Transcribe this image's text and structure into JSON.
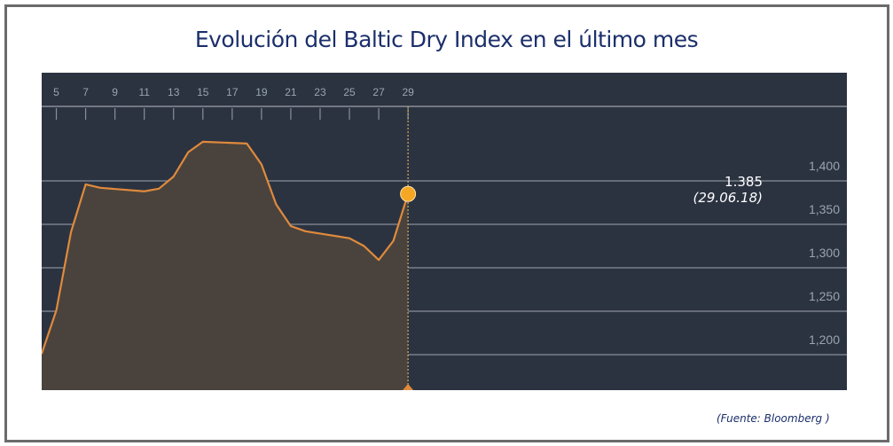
{
  "title": "Evolución del Baltic Dry Index en el último mes",
  "source": "(Fuente: Bloomberg )",
  "callout": {
    "value": "1.385",
    "date": "(29.06.18)"
  },
  "colors": {
    "panel_bg": "#2b3341",
    "area_fill": "#4a433d",
    "line": "#e08a3c",
    "marker": "#f5a623",
    "grid": "#8a8f98",
    "title": "#1b2f6b"
  },
  "chart_data": {
    "type": "area",
    "title": "Evolución del Baltic Dry Index en el último mes",
    "xlabel": "",
    "ylabel": "",
    "x_ticks": [
      "5",
      "7",
      "9",
      "11",
      "13",
      "15",
      "17",
      "19",
      "21",
      "23",
      "25",
      "27",
      "29"
    ],
    "y_ticks": [
      "1,200",
      "1,250",
      "1,300",
      "1,350",
      "1,400"
    ],
    "ylim": [
      1160,
      1520
    ],
    "grid": true,
    "legend": null,
    "x": [
      4,
      5,
      6,
      7,
      8,
      11,
      12,
      13,
      14,
      15,
      18,
      19,
      20,
      21,
      22,
      25,
      26,
      27,
      28,
      29
    ],
    "values": [
      1201,
      1251,
      1341,
      1396,
      1392,
      1388,
      1391,
      1405,
      1433,
      1445,
      1443,
      1419,
      1373,
      1348,
      1342,
      1334,
      1325,
      1309,
      1331,
      1385
    ],
    "annotations": [
      {
        "x": 29,
        "y": 1385,
        "text": "1.385 (29.06.18)"
      }
    ],
    "source": "(Fuente: Bloomberg )"
  }
}
